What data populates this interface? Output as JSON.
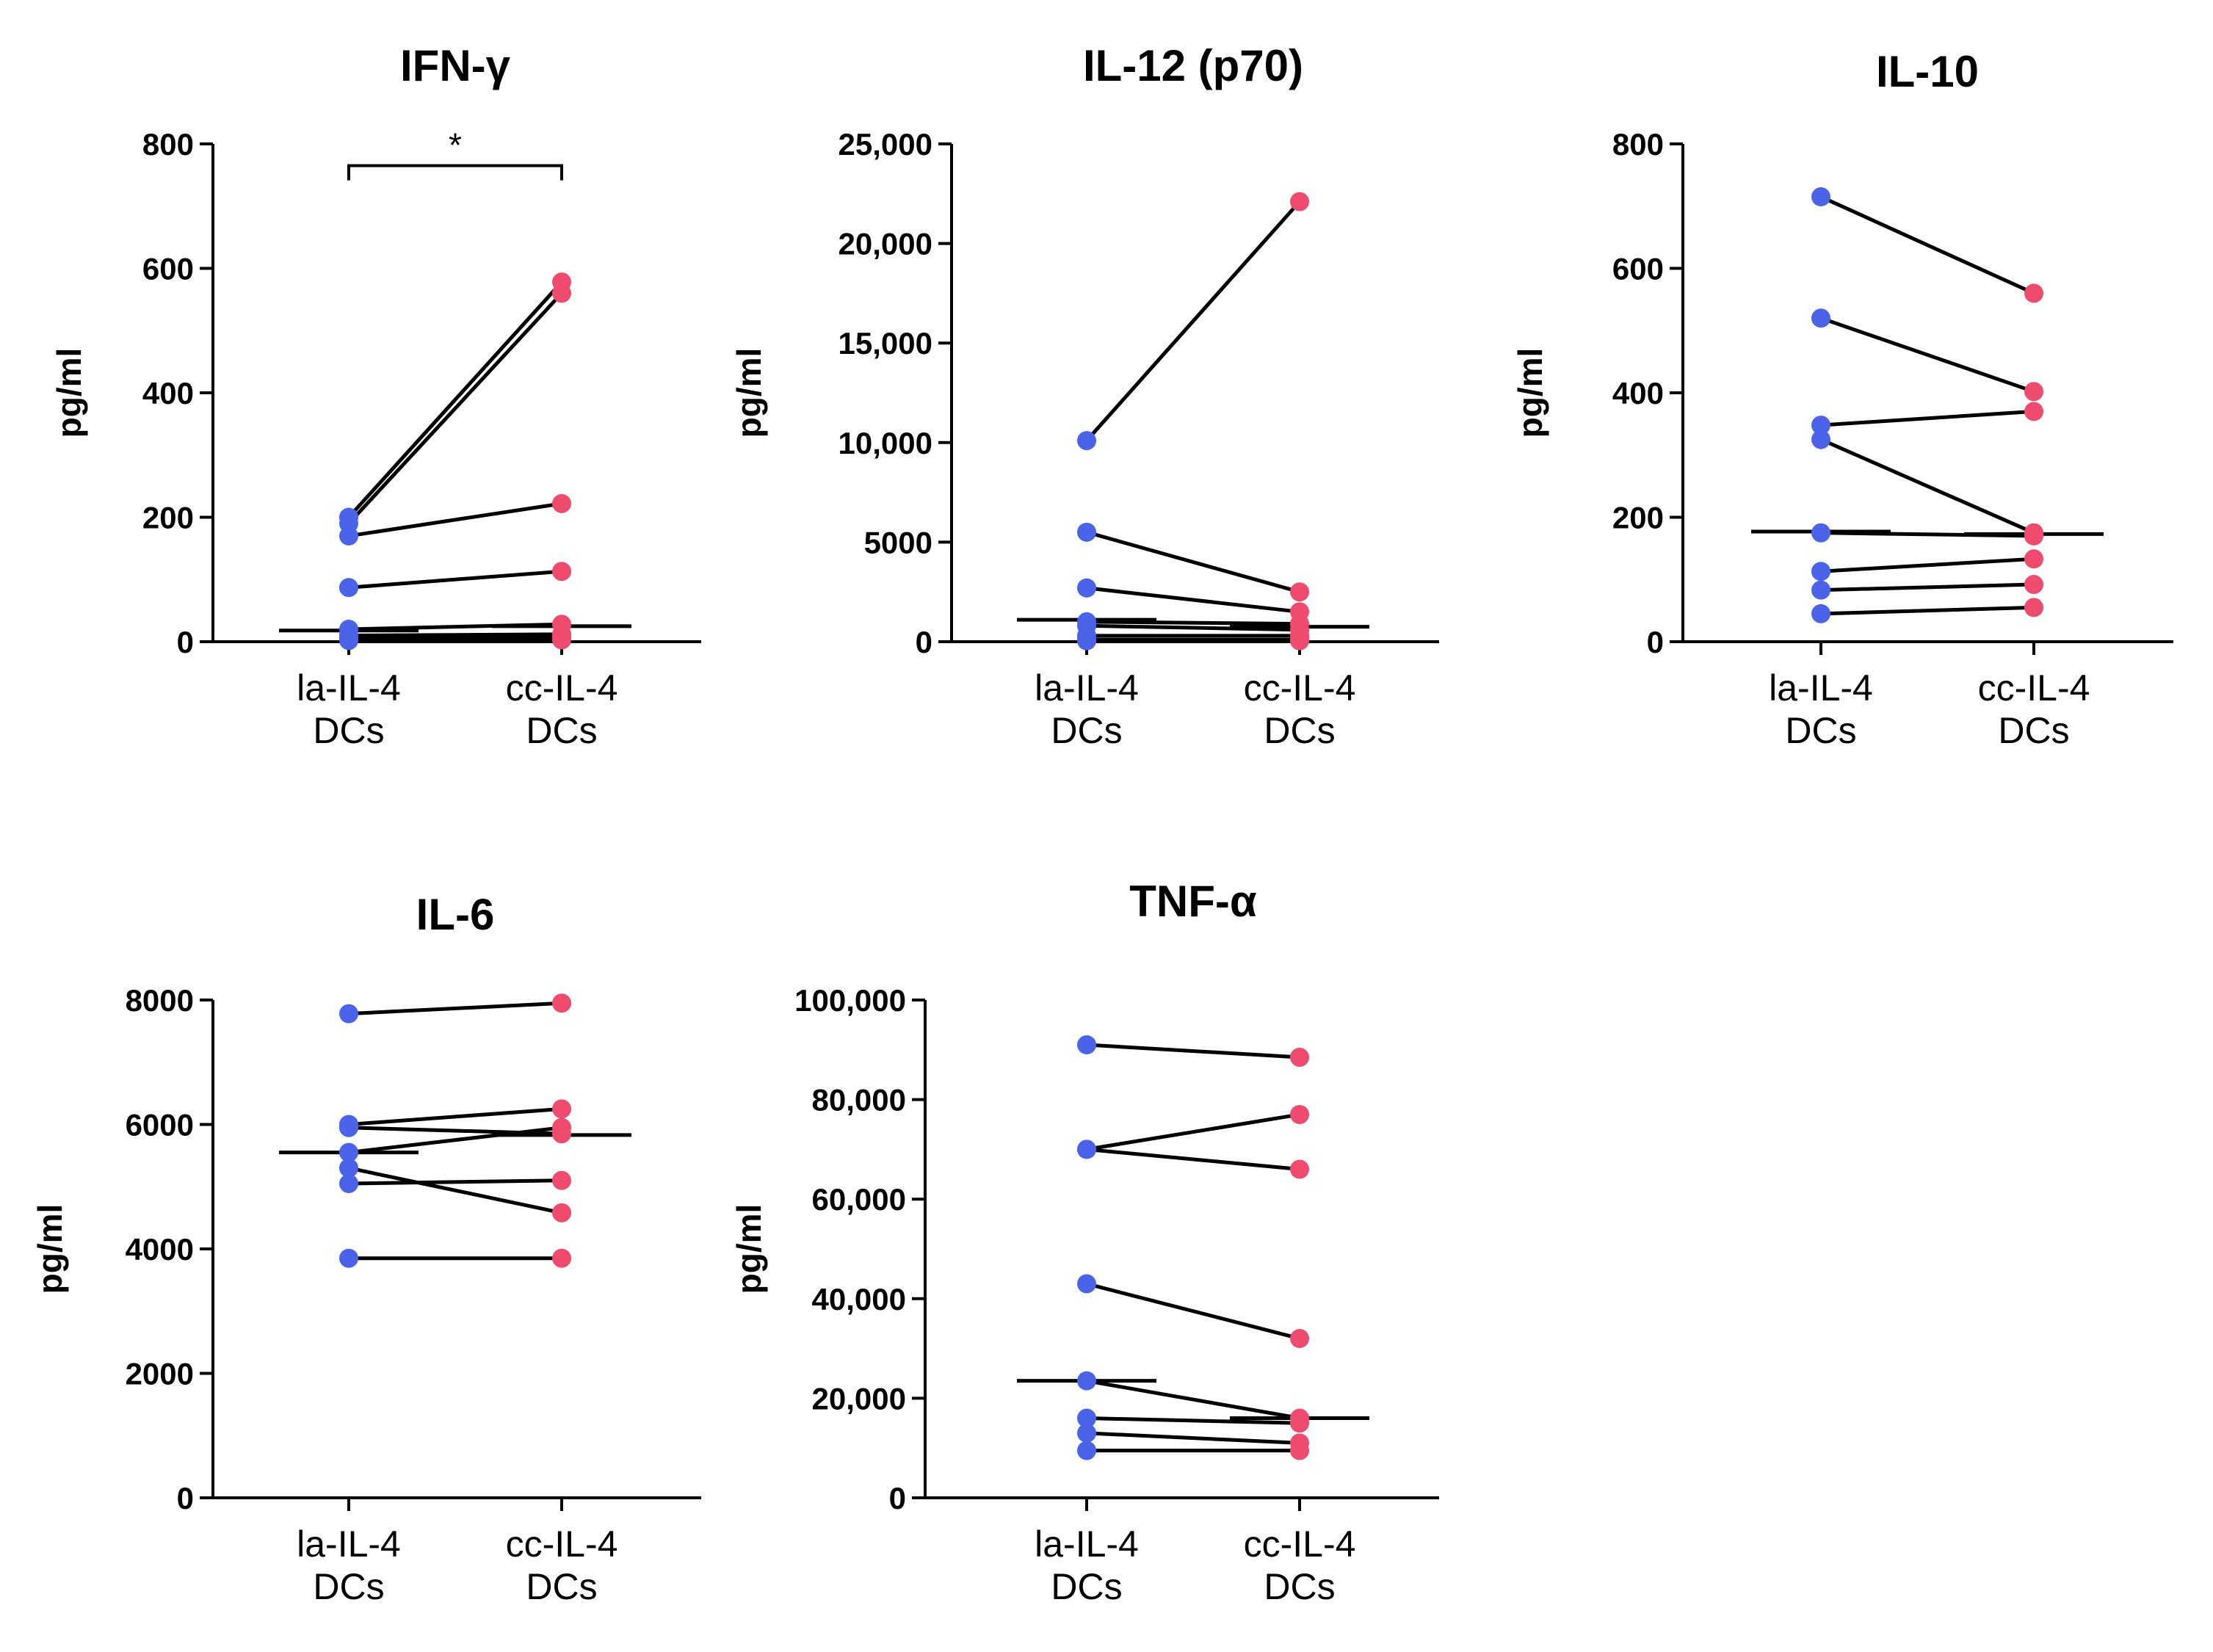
{
  "colors": {
    "la_dc": "#4a63e8",
    "cc_dc": "#ee4b6e",
    "line": "#000000"
  },
  "chart_data": [
    {
      "id": "ifn",
      "type": "paired-scatter",
      "title": "IFN-γ",
      "ylabel": "pg/ml",
      "ylim": [
        0,
        800
      ],
      "yticks": [
        0,
        200,
        400,
        600,
        800
      ],
      "ytick_labels": [
        "0",
        "200",
        "400",
        "600",
        "800"
      ],
      "categories": [
        "la-IL-4\nDCs",
        "cc-IL-4\nDCs"
      ],
      "category_lines": [
        [
          "la-IL-4",
          "DCs"
        ],
        [
          "cc-IL-4",
          "DCs"
        ]
      ],
      "pairs": [
        [
          200,
          578
        ],
        [
          190,
          560
        ],
        [
          170,
          222
        ],
        [
          87,
          113
        ],
        [
          20,
          28
        ],
        [
          10,
          12
        ],
        [
          5,
          8
        ],
        [
          2,
          3
        ]
      ],
      "medians": [
        18,
        25
      ],
      "significance": {
        "label": "*",
        "y": 765
      }
    },
    {
      "id": "il12",
      "type": "paired-scatter",
      "title": "IL-12 (p70)",
      "ylabel": "pg/ml",
      "ylim": [
        0,
        25000
      ],
      "yticks": [
        0,
        5000,
        10000,
        15000,
        20000,
        25000
      ],
      "ytick_labels": [
        "0",
        "5000",
        "10,000",
        "15,000",
        "20,000",
        "25,000"
      ],
      "categories": [
        "la-IL-4\nDCs",
        "cc-IL-4\nDCs"
      ],
      "category_lines": [
        [
          "la-IL-4",
          "DCs"
        ],
        [
          "cc-IL-4",
          "DCs"
        ]
      ],
      "pairs": [
        [
          10100,
          22100
        ],
        [
          5500,
          2500
        ],
        [
          2700,
          1500
        ],
        [
          1000,
          900
        ],
        [
          800,
          600
        ],
        [
          300,
          300
        ],
        [
          100,
          100
        ],
        [
          50,
          50
        ]
      ],
      "medians": [
        1100,
        750
      ]
    },
    {
      "id": "il10",
      "type": "paired-scatter",
      "title": "IL-10",
      "ylabel": "pg/ml",
      "ylim": [
        0,
        800
      ],
      "yticks": [
        0,
        200,
        400,
        600,
        800
      ],
      "ytick_labels": [
        "0",
        "200",
        "400",
        "600",
        "800"
      ],
      "categories": [
        "la-IL-4\nDCs",
        "cc-IL-4\nDCs"
      ],
      "category_lines": [
        [
          "la-IL-4",
          "DCs"
        ],
        [
          "cc-IL-4",
          "DCs"
        ]
      ],
      "pairs": [
        [
          715,
          560
        ],
        [
          520,
          402
        ],
        [
          348,
          370
        ],
        [
          325,
          175
        ],
        [
          175,
          170
        ],
        [
          113,
          133
        ],
        [
          83,
          92
        ],
        [
          45,
          55
        ]
      ],
      "medians": [
        177,
        173
      ]
    },
    {
      "id": "il6",
      "type": "paired-scatter",
      "title": "IL-6",
      "ylabel": "pg/ml",
      "ylim": [
        0,
        8000
      ],
      "yticks": [
        0,
        2000,
        4000,
        6000,
        8000
      ],
      "ytick_labels": [
        "0",
        "2000",
        "4000",
        "6000",
        "8000"
      ],
      "categories": [
        "la-IL-4\nDCs",
        "cc-IL-4\nDCs"
      ],
      "category_lines": [
        [
          "la-IL-4",
          "DCs"
        ],
        [
          "cc-IL-4",
          "DCs"
        ]
      ],
      "pairs": [
        [
          7780,
          7950
        ],
        [
          6000,
          6250
        ],
        [
          5950,
          5850
        ],
        [
          5550,
          5950
        ],
        [
          5300,
          4580
        ],
        [
          5050,
          5100
        ],
        [
          3850,
          3850
        ]
      ],
      "medians": [
        5550,
        5830
      ]
    },
    {
      "id": "tnf",
      "type": "paired-scatter",
      "title": "TNF-α",
      "ylabel": "pg/ml",
      "ylim": [
        0,
        100000
      ],
      "yticks": [
        0,
        20000,
        40000,
        60000,
        80000,
        100000
      ],
      "ytick_labels": [
        "0",
        "20,000",
        "40,000",
        "60,000",
        "80,000",
        "100,000"
      ],
      "categories": [
        "la-IL-4\nDCs",
        "cc-IL-4\nDCs"
      ],
      "category_lines": [
        [
          "la-IL-4",
          "DCs"
        ],
        [
          "cc-IL-4",
          "DCs"
        ]
      ],
      "pairs": [
        [
          91000,
          88500
        ],
        [
          70000,
          77000
        ],
        [
          70000,
          66000
        ],
        [
          43000,
          32000
        ],
        [
          23500,
          16000
        ],
        [
          16000,
          15000
        ],
        [
          13000,
          11000
        ],
        [
          9500,
          9500
        ]
      ],
      "medians": [
        23500,
        16000
      ]
    }
  ]
}
